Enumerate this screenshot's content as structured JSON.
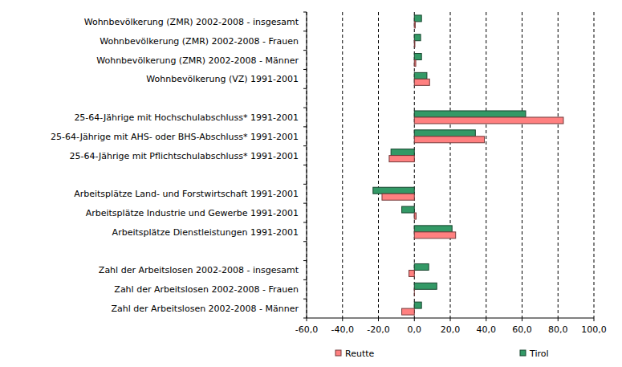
{
  "chart_data": {
    "type": "bar",
    "orientation": "horizontal",
    "grid": true,
    "legend": "bottom",
    "categories": [
      "Wohnbevölkerung (ZMR) 2002-2008 - insgesamt",
      "Wohnbevölkerung (ZMR) 2002-2008 - Frauen",
      "Wohnbevölkerung (ZMR) 2002-2008 - Männer",
      "Wohnbevölkerung (VZ) 1991-2001",
      null,
      "25-64-Jährige mit Hochschulabschluss* 1991-2001",
      "25-64-Jährige mit AHS- oder BHS-Abschluss* 1991-2001",
      "25-64-Jährige mit Pflichtschulabschluss* 1991-2001",
      null,
      "Arbeitsplätze Land- und Forstwirtschaft 1991-2001",
      "Arbeitsplätze Industrie und Gewerbe 1991-2001",
      "Arbeitsplätze Dienstleistungen 1991-2001",
      null,
      "Zahl der Arbeitslosen 2002-2008 - insgesamt",
      "Zahl der Arbeitslosen 2002-2008 - Frauen",
      "Zahl der Arbeitslosen 2002-2008 - Männer"
    ],
    "series": [
      {
        "name": "Reutte",
        "color": "#ff8080",
        "values": [
          0.5,
          0.3,
          0.8,
          8.5,
          null,
          83,
          39,
          -14,
          null,
          -18,
          1,
          23,
          null,
          -3,
          0,
          -7
        ]
      },
      {
        "name": "Tirol",
        "color": "#339966",
        "values": [
          4,
          3.5,
          4,
          7,
          null,
          62,
          34,
          -13,
          null,
          -23,
          -7,
          21,
          null,
          8,
          12.5,
          4
        ]
      }
    ],
    "xlim": [
      -60,
      100
    ],
    "xticks": [
      {
        "value": -60,
        "label": "-60,0"
      },
      {
        "value": -40,
        "label": "-40,0"
      },
      {
        "value": -20,
        "label": "-20,0"
      },
      {
        "value": 0,
        "label": "0,0"
      },
      {
        "value": 20,
        "label": "20,0"
      },
      {
        "value": 40,
        "label": "40,0"
      },
      {
        "value": 60,
        "label": "60,0"
      },
      {
        "value": 80,
        "label": "80,0"
      },
      {
        "value": 100,
        "label": "100,0"
      }
    ]
  }
}
